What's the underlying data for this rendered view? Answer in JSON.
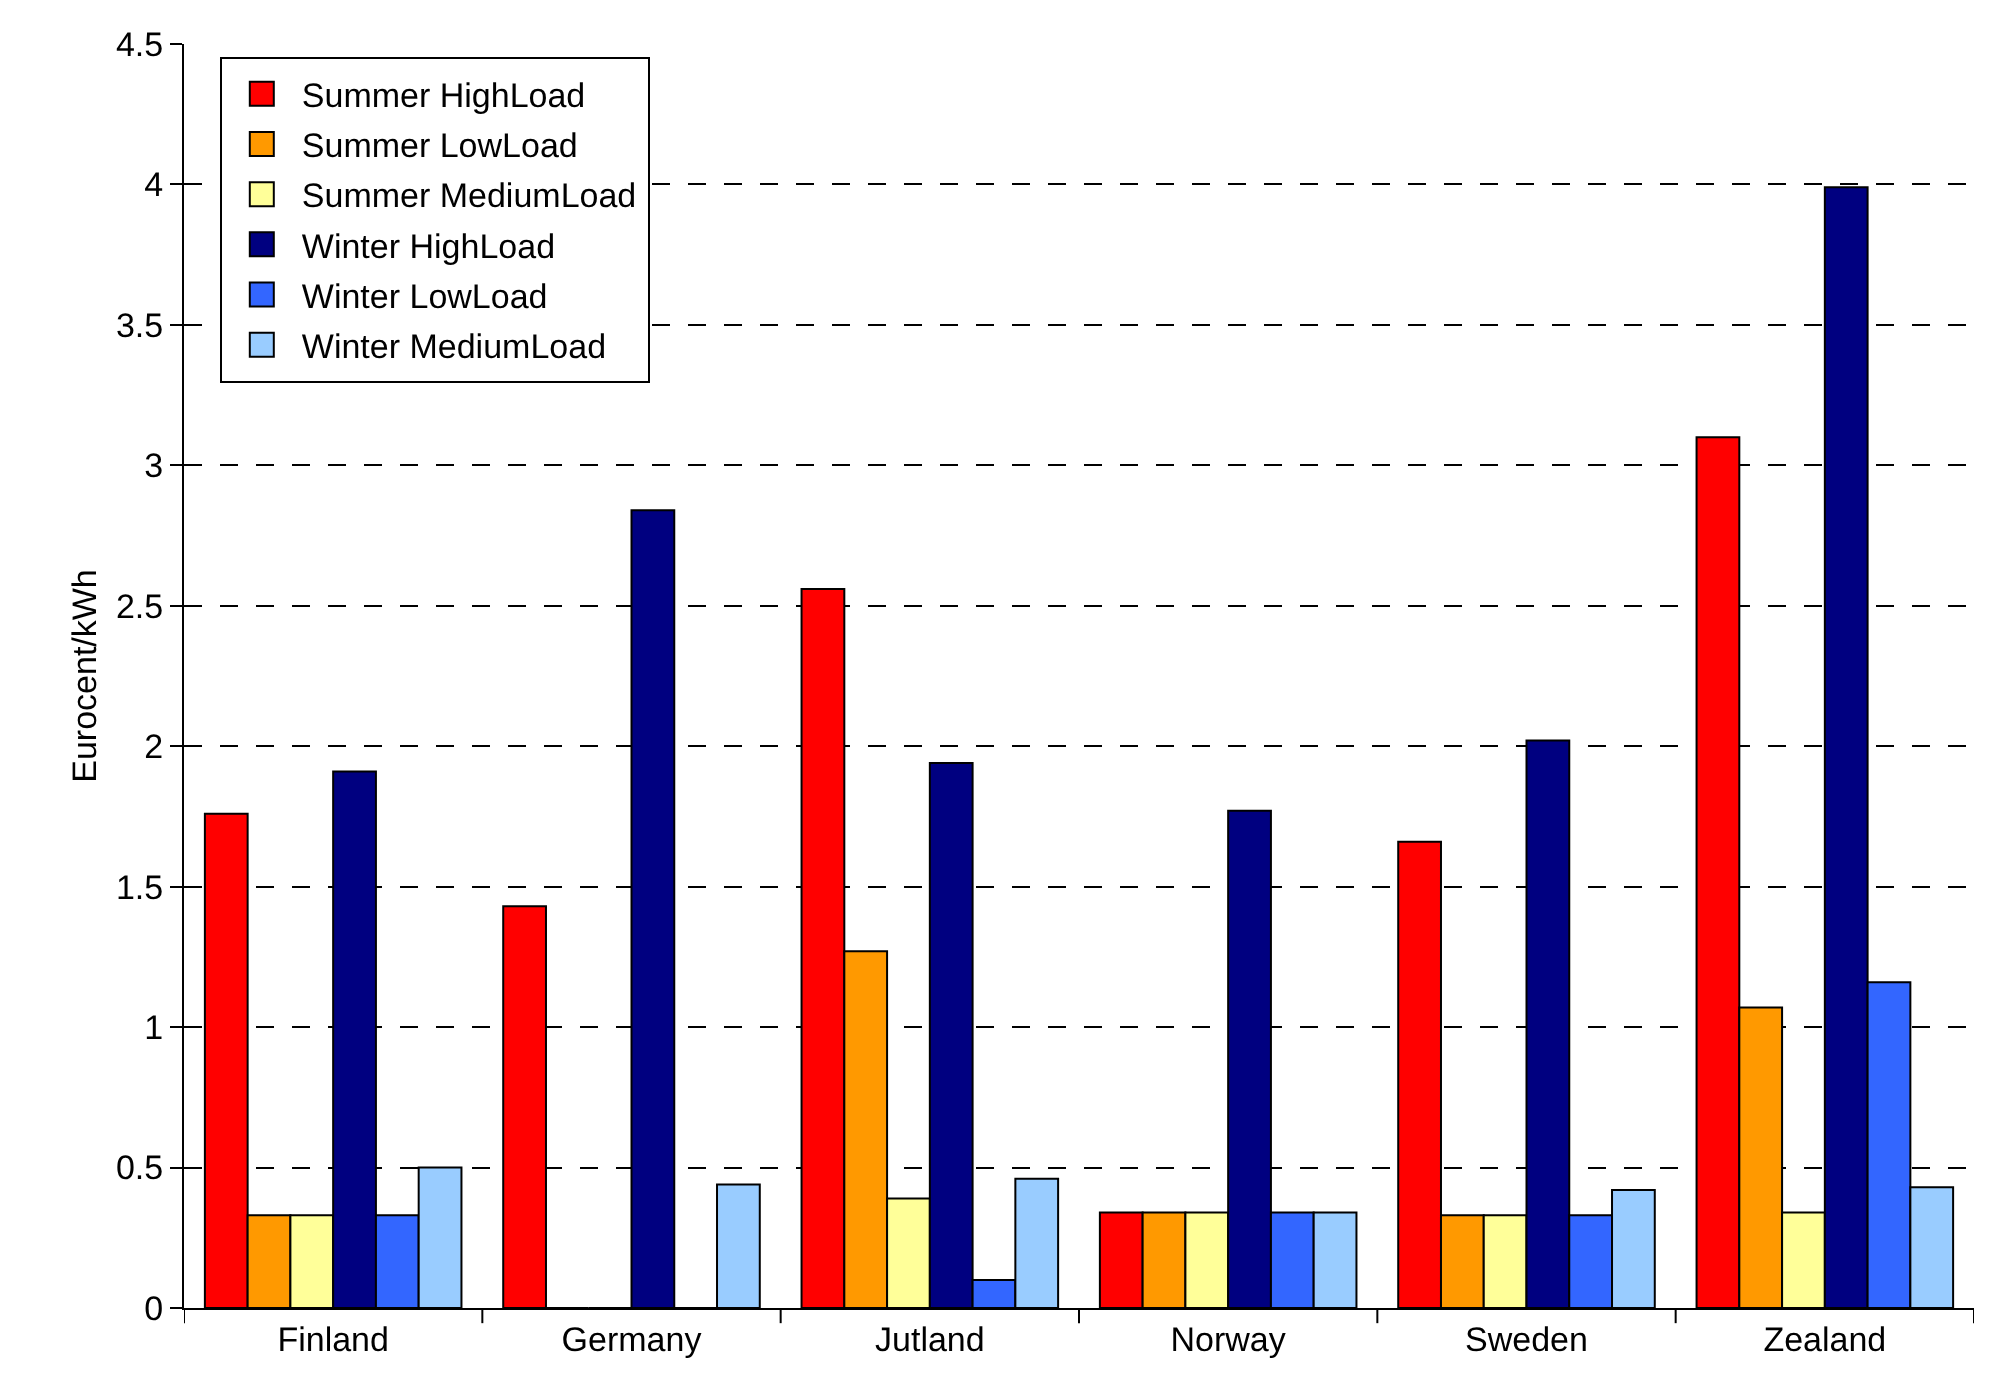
{
  "chart_data": {
    "type": "bar",
    "ylabel": "Eurocent/kWh",
    "categories": [
      "Finland",
      "Germany",
      "Jutland",
      "Norway",
      "Sweden",
      "Zealand"
    ],
    "series": [
      {
        "name": "Summer HighLoad",
        "color": "#ff0000",
        "values": [
          1.76,
          1.43,
          2.56,
          0.34,
          1.66,
          3.1
        ]
      },
      {
        "name": "Summer LowLoad",
        "color": "#ff9900",
        "values": [
          0.33,
          0,
          1.27,
          0.34,
          0.33,
          1.07
        ]
      },
      {
        "name": "Summer MediumLoad",
        "color": "#ffff99",
        "values": [
          0.33,
          0,
          0.39,
          0.34,
          0.33,
          0.34
        ]
      },
      {
        "name": "Winter HighLoad",
        "color": "#000080",
        "values": [
          1.91,
          2.84,
          1.94,
          1.77,
          2.02,
          3.99
        ]
      },
      {
        "name": "Winter LowLoad",
        "color": "#3366ff",
        "values": [
          0.33,
          0,
          0.1,
          0.34,
          0.33,
          1.16
        ]
      },
      {
        "name": "Winter MediumLoad",
        "color": "#99ccff",
        "values": [
          0.5,
          0.44,
          0.46,
          0.34,
          0.42,
          0.43
        ]
      }
    ],
    "ylim": [
      0,
      4.5
    ],
    "yticks": [
      0,
      0.5,
      1,
      1.5,
      2,
      2.5,
      3,
      3.5,
      4,
      4.5
    ],
    "grid": "y",
    "legend": "top left"
  }
}
